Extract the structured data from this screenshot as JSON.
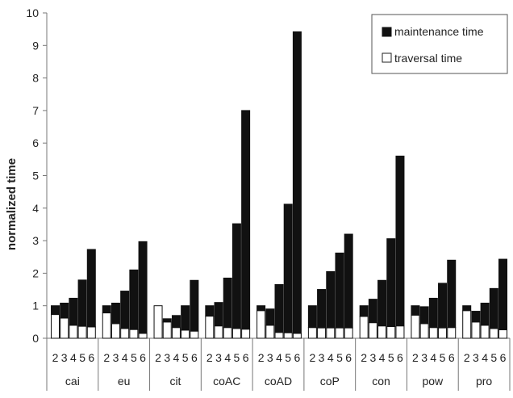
{
  "chart_data": {
    "type": "bar",
    "stacked": true,
    "ylabel": "normalized time",
    "ylim": [
      0,
      10
    ],
    "yticks": [
      0,
      1,
      2,
      3,
      4,
      5,
      6,
      7,
      8,
      9,
      10
    ],
    "grid": false,
    "legend_position": "top-right",
    "groups": [
      "cai",
      "eu",
      "cit",
      "coAC",
      "coAD",
      "coP",
      "con",
      "pow",
      "pro"
    ],
    "subcategories": [
      "2",
      "3",
      "4",
      "5",
      "6"
    ],
    "series": [
      {
        "name": "traversal time",
        "color": "#ffffff",
        "values": [
          [
            0.73,
            0.62,
            0.4,
            0.37,
            0.35
          ],
          [
            0.78,
            0.45,
            0.3,
            0.27,
            0.15
          ],
          [
            1.0,
            0.5,
            0.33,
            0.25,
            0.22
          ],
          [
            0.68,
            0.38,
            0.33,
            0.3,
            0.28
          ],
          [
            0.85,
            0.4,
            0.18,
            0.17,
            0.15
          ],
          [
            0.33,
            0.32,
            0.32,
            0.32,
            0.32
          ],
          [
            0.67,
            0.48,
            0.38,
            0.36,
            0.38
          ],
          [
            0.71,
            0.45,
            0.33,
            0.32,
            0.33
          ],
          [
            0.85,
            0.5,
            0.4,
            0.3,
            0.26
          ]
        ]
      },
      {
        "name": "maintenance time",
        "color": "#111111",
        "values": [
          [
            0.27,
            0.46,
            0.83,
            1.42,
            2.38
          ],
          [
            0.22,
            0.63,
            1.15,
            1.83,
            2.82
          ],
          [
            0.0,
            0.1,
            0.37,
            0.75,
            1.56
          ],
          [
            0.32,
            0.72,
            1.52,
            3.22,
            6.72
          ],
          [
            0.15,
            0.5,
            1.47,
            3.95,
            9.27
          ],
          [
            0.67,
            1.18,
            1.73,
            2.3,
            2.88
          ],
          [
            0.33,
            0.72,
            1.4,
            2.7,
            5.22
          ],
          [
            0.29,
            0.52,
            0.9,
            1.37,
            2.07
          ],
          [
            0.15,
            0.33,
            0.68,
            1.23,
            2.17
          ]
        ]
      }
    ]
  }
}
